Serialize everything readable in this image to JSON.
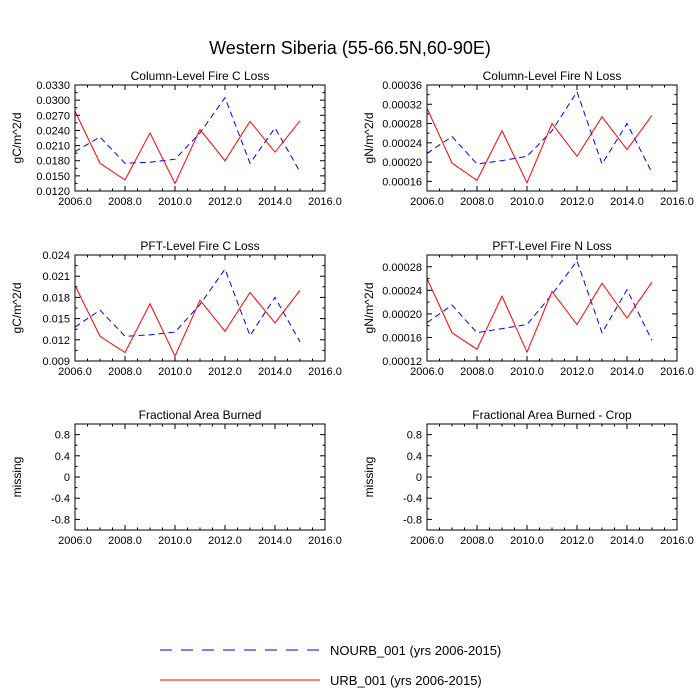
{
  "figure_title": "Western Siberia (55-66.5N,60-90E)",
  "legend": [
    {
      "label": "NOURB_001 (yrs 2006-2015)",
      "color": "#0000ff",
      "dash": "dashed"
    },
    {
      "label": "URB_001 (yrs 2006-2015)",
      "color": "#ff0000",
      "dash": "solid"
    }
  ],
  "chart_data": [
    {
      "type": "line",
      "title": "Column-Level Fire C Loss",
      "ylabel": "gC/m^2/d",
      "xlim": [
        2006,
        2016
      ],
      "ylim": [
        0.012,
        0.033
      ],
      "x_ticks": [
        "2006.0",
        "2008.0",
        "2010.0",
        "2012.0",
        "2014.0",
        "2016.0"
      ],
      "y_ticks": [
        "0.0120",
        "0.0150",
        "0.0180",
        "0.0210",
        "0.0240",
        "0.0270",
        "0.0300",
        "0.0330"
      ],
      "x": [
        2006,
        2007,
        2008,
        2009,
        2010,
        2011,
        2012,
        2013,
        2014,
        2015
      ],
      "series": [
        {
          "name": "NOURB_001",
          "values": [
            0.0198,
            0.0227,
            0.0175,
            0.0177,
            0.0183,
            0.0235,
            0.0305,
            0.0175,
            0.0245,
            0.0158
          ]
        },
        {
          "name": "URB_001",
          "values": [
            0.0278,
            0.0175,
            0.0142,
            0.0235,
            0.0135,
            0.0242,
            0.018,
            0.0258,
            0.0197,
            0.0259
          ]
        }
      ]
    },
    {
      "type": "line",
      "title": "Column-Level Fire N Loss",
      "ylabel": "gN/m^2/d",
      "xlim": [
        2006,
        2016
      ],
      "ylim": [
        0.00014,
        0.00036
      ],
      "x_ticks": [
        "2006.0",
        "2008.0",
        "2010.0",
        "2012.0",
        "2014.0",
        "2016.0"
      ],
      "y_ticks": [
        "0.00016",
        "0.00020",
        "0.00024",
        "0.00028",
        "0.00032",
        "0.00036"
      ],
      "x": [
        2006,
        2007,
        2008,
        2009,
        2010,
        2011,
        2012,
        2013,
        2014,
        2015
      ],
      "series": [
        {
          "name": "NOURB_001",
          "values": [
            0.000218,
            0.000253,
            0.000196,
            0.000203,
            0.000212,
            0.000265,
            0.000346,
            0.000196,
            0.00028,
            0.000178
          ]
        },
        {
          "name": "URB_001",
          "values": [
            0.000312,
            0.000198,
            0.000162,
            0.000265,
            0.000157,
            0.00028,
            0.000212,
            0.000294,
            0.000226,
            0.000297
          ]
        }
      ]
    },
    {
      "type": "line",
      "title": "PFT-Level Fire C Loss",
      "ylabel": "gC/m^2/d",
      "xlim": [
        2006,
        2016
      ],
      "ylim": [
        0.009,
        0.024
      ],
      "x_ticks": [
        "2006.0",
        "2008.0",
        "2010.0",
        "2012.0",
        "2014.0",
        "2016.0"
      ],
      "y_ticks": [
        "0.009",
        "0.012",
        "0.015",
        "0.018",
        "0.021",
        "0.024"
      ],
      "x": [
        2006,
        2007,
        2008,
        2009,
        2010,
        2011,
        2012,
        2013,
        2014,
        2015
      ],
      "series": [
        {
          "name": "NOURB_001",
          "values": [
            0.0138,
            0.0162,
            0.0125,
            0.0127,
            0.0131,
            0.017,
            0.022,
            0.0126,
            0.018,
            0.0117
          ]
        },
        {
          "name": "URB_001",
          "values": [
            0.0197,
            0.0125,
            0.0102,
            0.0171,
            0.0097,
            0.0176,
            0.0132,
            0.0187,
            0.0144,
            0.019
          ]
        }
      ]
    },
    {
      "type": "line",
      "title": "PFT-Level Fire N Loss",
      "ylabel": "gN/m^2/d",
      "xlim": [
        2006,
        2016
      ],
      "ylim": [
        0.00012,
        0.0003
      ],
      "x_ticks": [
        "2006.0",
        "2008.0",
        "2010.0",
        "2012.0",
        "2014.0",
        "2016.0"
      ],
      "y_ticks": [
        "0.00012",
        "0.00016",
        "0.00020",
        "0.00024",
        "0.00028"
      ],
      "x": [
        2006,
        2007,
        2008,
        2009,
        2010,
        2011,
        2012,
        2013,
        2014,
        2015
      ],
      "series": [
        {
          "name": "NOURB_001",
          "values": [
            0.000185,
            0.000215,
            0.000168,
            0.000175,
            0.000182,
            0.000233,
            0.00029,
            0.000168,
            0.000241,
            0.000155
          ]
        },
        {
          "name": "URB_001",
          "values": [
            0.00026,
            0.000168,
            0.00014,
            0.00023,
            0.000135,
            0.000238,
            0.000182,
            0.000252,
            0.000193,
            0.000254
          ]
        }
      ]
    },
    {
      "type": "line",
      "title": "Fractional Area Burned",
      "ylabel": "missing",
      "xlim": [
        2006,
        2016
      ],
      "ylim": [
        -1.0,
        1.0
      ],
      "x_ticks": [
        "2006.0",
        "2008.0",
        "2010.0",
        "2012.0",
        "2014.0",
        "2016.0"
      ],
      "y_ticks": [
        "-0.8",
        "-0.4",
        "0",
        "0.4",
        "0.8"
      ],
      "x": [],
      "series": []
    },
    {
      "type": "line",
      "title": "Fractional Area Burned - Crop",
      "ylabel": "missing",
      "xlim": [
        2006,
        2016
      ],
      "ylim": [
        -1.0,
        1.0
      ],
      "x_ticks": [
        "2006.0",
        "2008.0",
        "2010.0",
        "2012.0",
        "2014.0",
        "2016.0"
      ],
      "y_ticks": [
        "-0.8",
        "-0.4",
        "0",
        "0.4",
        "0.8"
      ],
      "x": [],
      "series": []
    }
  ]
}
